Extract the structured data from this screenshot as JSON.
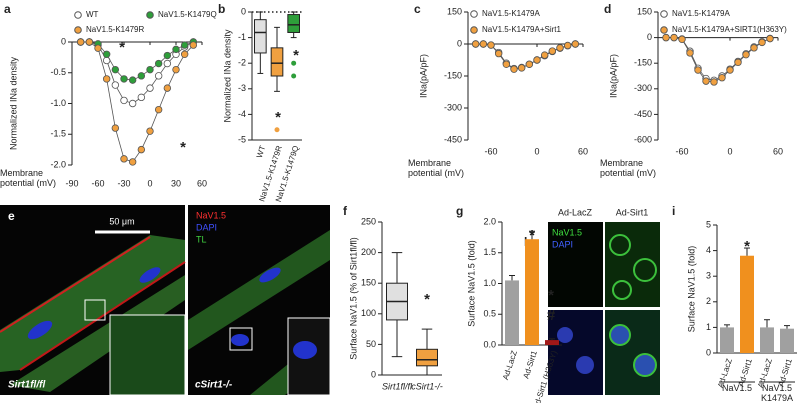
{
  "chart_data": [
    {
      "type": "line",
      "label": "a",
      "xlabel": "Membrane potential (mV)",
      "ylabel": "Normalized INa density",
      "x": [
        -80,
        -70,
        -60,
        -50,
        -40,
        -30,
        -20,
        -10,
        0,
        10,
        20,
        30,
        40,
        50
      ],
      "series": [
        {
          "name": "WT",
          "color": "#ffffff",
          "values": [
            0,
            0,
            -0.05,
            -0.3,
            -0.7,
            -0.95,
            -1.0,
            -0.9,
            -0.75,
            -0.55,
            -0.35,
            -0.2,
            -0.08,
            0
          ]
        },
        {
          "name": "NaV1.5-K1479Q",
          "color": "#2e9e3a",
          "values": [
            0,
            0,
            -0.03,
            -0.2,
            -0.45,
            -0.6,
            -0.62,
            -0.55,
            -0.45,
            -0.35,
            -0.22,
            -0.12,
            -0.05,
            0
          ]
        },
        {
          "name": "NaV1.5-K1479R",
          "color": "#f0a040",
          "values": [
            0,
            0,
            -0.1,
            -0.6,
            -1.4,
            -1.9,
            -1.95,
            -1.75,
            -1.45,
            -1.1,
            -0.75,
            -0.45,
            -0.2,
            -0.05
          ]
        }
      ],
      "xlim": [
        -90,
        60
      ],
      "xticks": [
        -90,
        -60,
        -30,
        0,
        30,
        60
      ],
      "ylim": [
        -2,
        0
      ],
      "yticks": [
        0,
        -0.5,
        {
          "value": -1,
          "label": "-1.0"
        },
        -1.5,
        {
          "value": -2,
          "label": "-2.0"
        }
      ],
      "annotations": [
        "*",
        "*"
      ]
    },
    {
      "type": "box",
      "label": "b",
      "ylabel": "Normalized INa density",
      "categories": [
        "WT",
        "NaV1.5-K1479R",
        "NaV1.5-K1479Q"
      ],
      "values": [
        [
          -2.4,
          -1.6,
          -0.8,
          -0.3,
          0
        ],
        [
          -3.1,
          -2.5,
          -2.0,
          -1.4,
          -0.6
        ],
        [
          -1.0,
          -0.8,
          -0.5,
          -0.1,
          0
        ]
      ],
      "outliers": [
        [],
        [
          -4.6
        ],
        [
          -2.0,
          -2.5
        ]
      ],
      "colors": [
        "#e0e0e0",
        "#f0a040",
        "#2e9e3a"
      ],
      "reference_line": 0,
      "ylim": [
        -5,
        0
      ],
      "yticks": [
        0,
        -1,
        -2,
        -3,
        -4,
        -5
      ],
      "annotations": [
        "*",
        "*"
      ]
    },
    {
      "type": "line",
      "label": "c",
      "xlabel": "Membrane potential (mV)",
      "ylabel": "INa(pA/pF)",
      "x": [
        -80,
        -70,
        -60,
        -50,
        -40,
        -30,
        -20,
        -10,
        0,
        10,
        20,
        30,
        40,
        50
      ],
      "series": [
        {
          "name": "NaV1.5-K1479A",
          "color": "#ffffff",
          "values": [
            0,
            0,
            -5,
            -40,
            -90,
            -115,
            -110,
            -95,
            -75,
            -55,
            -35,
            -20,
            -8,
            0
          ]
        },
        {
          "name": "NaV1.5-K1479A+Sirt1",
          "color": "#f0a040",
          "values": [
            0,
            0,
            -5,
            -45,
            -95,
            -118,
            -112,
            -95,
            -75,
            -52,
            -33,
            -18,
            -7,
            0
          ]
        }
      ],
      "xlim": [
        -90,
        60
      ],
      "xticks": [
        -60,
        0,
        60
      ],
      "ylim": [
        -450,
        150
      ],
      "yticks": [
        150,
        0,
        -150,
        -300,
        -450
      ]
    },
    {
      "type": "line",
      "label": "d",
      "xlabel": "Membrane potential (mV)",
      "ylabel": "INa(pA/pF)",
      "x": [
        -80,
        -70,
        -60,
        -50,
        -40,
        -30,
        -20,
        -10,
        0,
        10,
        20,
        30,
        40,
        50
      ],
      "series": [
        {
          "name": "NaV1.5-K1479A",
          "color": "#ffffff",
          "values": [
            0,
            0,
            -8,
            -80,
            -180,
            -240,
            -250,
            -225,
            -185,
            -140,
            -95,
            -55,
            -25,
            -5
          ]
        },
        {
          "name": "NaV1.5-K1479A+SIRT1(H363Y)",
          "color": "#f0a040",
          "values": [
            0,
            0,
            -10,
            -90,
            -190,
            -255,
            -260,
            -235,
            -190,
            -145,
            -100,
            -60,
            -28,
            -6
          ]
        }
      ],
      "xlim": [
        -90,
        60
      ],
      "xticks": [
        -60,
        0,
        60
      ],
      "ylim": [
        -600,
        150
      ],
      "yticks": [
        150,
        0,
        -150,
        -300,
        -450,
        -600
      ]
    },
    {
      "type": "box",
      "label": "f",
      "ylabel": "Surface NaV1.5 (% of Sirt1fl/fl)",
      "categories": [
        "Sirt1fl/fl",
        "cSirt1-/-"
      ],
      "values": [
        [
          30,
          90,
          120,
          150,
          200
        ],
        [
          0,
          15,
          25,
          42,
          75
        ]
      ],
      "outliers": [
        [],
        []
      ],
      "colors": [
        "#e0e0e0",
        "#f0a040"
      ],
      "ylim": [
        0,
        250
      ],
      "yticks": [
        0,
        50,
        100,
        150,
        200,
        250
      ],
      "annotations": [
        "*"
      ]
    },
    {
      "type": "bar",
      "label": "g",
      "ylabel": "Surface NaV1.5 (fold)",
      "categories": [
        "Ad-LacZ",
        "Ad-Sirt1",
        "Ad-Sirt1 (H363Y)"
      ],
      "values": [
        1.05,
        1.72,
        0.08
      ],
      "errors": [
        0.08,
        0.13,
        0.02
      ],
      "colors": [
        "#a0a0a0",
        "#f0901e",
        "#a01818"
      ],
      "ylim": [
        0,
        2
      ],
      "yticks": [
        {
          "value": 0,
          "label": "0.0"
        },
        0.5,
        {
          "value": 1,
          "label": "1.0"
        },
        1.5,
        {
          "value": 2,
          "label": "2.0"
        }
      ],
      "annotations": [
        "*",
        "*",
        "#"
      ]
    },
    {
      "type": "bar",
      "label": "i",
      "ylabel": "Surface NaV1.5 (fold)",
      "categories": [
        "Ad-LacZ",
        "Ad-Sirt1",
        "Ad-LacZ",
        "Ad-Sirt1"
      ],
      "values": [
        1.0,
        3.8,
        1.0,
        0.95
      ],
      "errors": [
        0.1,
        0.3,
        0.3,
        0.12
      ],
      "colors": [
        "#a0a0a0",
        "#f0901e",
        "#a0a0a0",
        "#a0a0a0"
      ],
      "groups": [
        "NaV1.5",
        "NaV1.5 K1479A"
      ],
      "ylim": [
        0,
        5
      ],
      "yticks": [
        0,
        1,
        2,
        3,
        4,
        5
      ],
      "annotations": [
        "*"
      ]
    }
  ],
  "images": {
    "e": {
      "label": "e",
      "scale_bar": "50 μm",
      "channels": [
        "NaV1.5",
        "DAPI",
        "TL"
      ],
      "panels": [
        "Sirt1fl/fl",
        "cSirt1-/-"
      ]
    },
    "h": {
      "label": "h",
      "columns": [
        "Ad-LacZ",
        "Ad-Sirt1"
      ],
      "channels": [
        "NaV1.5",
        "DAPI"
      ]
    }
  }
}
